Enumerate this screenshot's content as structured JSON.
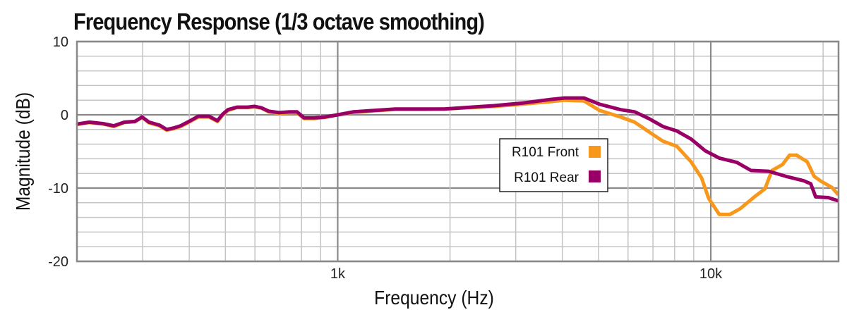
{
  "chart_data": {
    "type": "line",
    "title": "Frequency Response (1/3 octave smoothing)",
    "xlabel": "Frequency (Hz)",
    "ylabel": "Magnitude (dB)",
    "xscale": "log",
    "xlim": [
      200,
      22000
    ],
    "ylim": [
      -20,
      10
    ],
    "x_tick_labels": [
      {
        "value": 1000,
        "label": "1k"
      },
      {
        "value": 10000,
        "label": "10k"
      }
    ],
    "y_tick_labels": [
      {
        "value": 10,
        "label": "10"
      },
      {
        "value": 0,
        "label": "0"
      },
      {
        "value": -10,
        "label": "-10"
      },
      {
        "value": -20,
        "label": "-20"
      }
    ],
    "grid": true,
    "legend_position": "center-right",
    "series": [
      {
        "name": "R101 Front",
        "color": "#f7971c",
        "x": [
          201,
          216,
          235,
          251,
          268,
          286,
          299,
          312,
          333,
          348,
          363,
          379,
          396,
          423,
          452,
          476,
          492,
          508,
          537,
          573,
          598,
          625,
          653,
          697,
          744,
          778,
          812,
          867,
          925,
          1000,
          1100,
          1254,
          1428,
          1699,
          1935,
          2205,
          2623,
          3120,
          3714,
          4052,
          4571,
          5032,
          5733,
          6252,
          6817,
          7443,
          8111,
          8851,
          9445,
          9870,
          10540,
          11250,
          12000,
          13090,
          13970,
          14590,
          15560,
          16260,
          16980,
          18130,
          18930,
          19780,
          21120,
          21870
        ],
        "y": [
          -1.3,
          -1.05,
          -1.25,
          -1.6,
          -1.05,
          -0.95,
          -0.35,
          -1.1,
          -1.5,
          -2.1,
          -1.9,
          -1.6,
          -1.1,
          -0.3,
          -0.3,
          -0.9,
          0.0,
          0.6,
          1.0,
          1.0,
          1.1,
          0.9,
          0.4,
          0.2,
          0.3,
          0.3,
          -0.5,
          -0.5,
          -0.35,
          0.0,
          0.35,
          0.55,
          0.75,
          0.75,
          0.8,
          0.95,
          1.15,
          1.45,
          1.8,
          2.0,
          1.9,
          0.6,
          -0.3,
          -1.0,
          -2.3,
          -3.6,
          -4.3,
          -6.4,
          -8.6,
          -11.4,
          -13.6,
          -13.6,
          -12.8,
          -11.2,
          -10.1,
          -7.6,
          -6.8,
          -5.5,
          -5.5,
          -6.4,
          -8.4,
          -9.1,
          -9.9,
          -10.8
        ]
      },
      {
        "name": "R101 Rear",
        "color": "#990066",
        "x": [
          201,
          216,
          235,
          251,
          268,
          286,
          299,
          312,
          333,
          348,
          363,
          379,
          396,
          423,
          452,
          476,
          492,
          508,
          537,
          573,
          598,
          625,
          653,
          697,
          744,
          778,
          812,
          867,
          925,
          1000,
          1100,
          1254,
          1428,
          1699,
          1935,
          2205,
          2623,
          3120,
          3714,
          4052,
          4571,
          5032,
          5733,
          6252,
          6817,
          7443,
          8111,
          8851,
          9660,
          10540,
          11750,
          12820,
          14290,
          15920,
          17740,
          18530,
          19100,
          20650,
          21870
        ],
        "y": [
          -1.25,
          -1.0,
          -1.2,
          -1.5,
          -1.0,
          -0.9,
          -0.3,
          -1.0,
          -1.4,
          -2.0,
          -1.8,
          -1.5,
          -1.0,
          -0.2,
          -0.2,
          -0.8,
          0.1,
          0.7,
          1.05,
          1.05,
          1.15,
          0.95,
          0.5,
          0.3,
          0.4,
          0.4,
          -0.4,
          -0.4,
          -0.3,
          0.0,
          0.4,
          0.6,
          0.8,
          0.8,
          0.8,
          1.0,
          1.25,
          1.6,
          2.1,
          2.3,
          2.3,
          1.45,
          0.7,
          0.4,
          -0.5,
          -1.6,
          -2.2,
          -3.3,
          -4.9,
          -5.9,
          -6.5,
          -7.6,
          -7.7,
          -8.4,
          -9.0,
          -9.4,
          -11.2,
          -11.3,
          -11.7
        ]
      }
    ]
  }
}
